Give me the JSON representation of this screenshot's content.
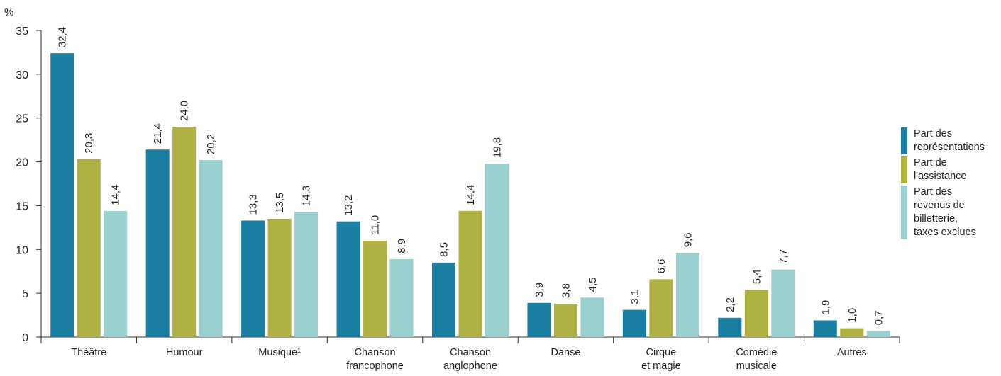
{
  "chart_data": {
    "type": "bar",
    "y_unit": "%",
    "ylim": [
      0,
      35
    ],
    "yticks": [
      0,
      5,
      10,
      15,
      20,
      25,
      30,
      35
    ],
    "categories": [
      [
        "Théâtre"
      ],
      [
        "Humour"
      ],
      [
        "Musique¹"
      ],
      [
        "Chanson",
        "francophone"
      ],
      [
        "Chanson",
        "anglophone"
      ],
      [
        "Danse"
      ],
      [
        "Cirque",
        "et magie"
      ],
      [
        "Comédie",
        "musicale"
      ],
      [
        "Autres"
      ]
    ],
    "series": [
      {
        "name": "Part des\nreprésentations",
        "color": "#1a7fa3",
        "values": [
          32.4,
          21.4,
          13.3,
          13.2,
          8.5,
          3.9,
          3.1,
          2.2,
          1.9
        ],
        "labels": [
          "32,4",
          "21,4",
          "13,3",
          "13,2",
          "8,5",
          "3,9",
          "3,1",
          "2,2",
          "1,9"
        ]
      },
      {
        "name": "Part de\nl'assistance",
        "color": "#b0b143",
        "values": [
          20.3,
          24.0,
          13.5,
          11.0,
          14.4,
          3.8,
          6.6,
          5.4,
          1.0
        ],
        "labels": [
          "20,3",
          "24,0",
          "13,5",
          "11,0",
          "14,4",
          "3,8",
          "6,6",
          "5,4",
          "1,0"
        ]
      },
      {
        "name": "Part des\nrevenus de\nbilletterie,\ntaxes exclues",
        "color": "#9acfd0",
        "values": [
          14.4,
          20.2,
          14.3,
          8.9,
          19.8,
          4.5,
          9.6,
          7.7,
          0.7
        ],
        "labels": [
          "14,4",
          "20,2",
          "14,3",
          "8,9",
          "19,8",
          "4,5",
          "9,6",
          "7,7",
          "0,7"
        ]
      }
    ],
    "grid": false,
    "legend_position": "right"
  }
}
